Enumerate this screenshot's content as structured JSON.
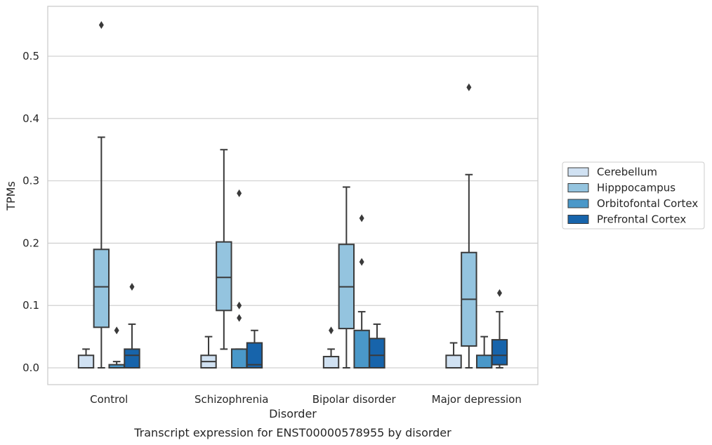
{
  "chart_data": {
    "type": "boxplot",
    "caption": "Transcript expression for ENST00000578955 by disorder",
    "xlabel": "Disorder",
    "ylabel": "TPMs",
    "ylim": [
      -0.027,
      0.58
    ],
    "yticks": [
      0.0,
      0.1,
      0.2,
      0.3,
      0.4,
      0.5
    ],
    "ytick_labels": [
      "0.0",
      "0.1",
      "0.2",
      "0.3",
      "0.4",
      "0.5"
    ],
    "grid": "horizontal",
    "legend_placement": "right",
    "categories": [
      "Control",
      "Schizophrenia",
      "Bipolar disorder",
      "Major depression"
    ],
    "series": [
      {
        "name": "Cerebellum",
        "color": "#d0e1f2",
        "boxes": [
          {
            "whislo": 0.0,
            "q1": 0.0,
            "med": 0.0,
            "q3": 0.02,
            "whishi": 0.03,
            "fliers": []
          },
          {
            "whislo": 0.0,
            "q1": 0.0,
            "med": 0.01,
            "q3": 0.02,
            "whishi": 0.05,
            "fliers": []
          },
          {
            "whislo": 0.0,
            "q1": 0.0,
            "med": 0.0,
            "q3": 0.018,
            "whishi": 0.03,
            "fliers": [
              0.06
            ]
          },
          {
            "whislo": 0.0,
            "q1": 0.0,
            "med": 0.0,
            "q3": 0.02,
            "whishi": 0.04,
            "fliers": []
          }
        ]
      },
      {
        "name": "Hipppocampus",
        "color": "#94c4df",
        "boxes": [
          {
            "whislo": 0.0,
            "q1": 0.065,
            "med": 0.13,
            "q3": 0.19,
            "whishi": 0.37,
            "fliers": [
              0.55
            ]
          },
          {
            "whislo": 0.03,
            "q1": 0.092,
            "med": 0.145,
            "q3": 0.202,
            "whishi": 0.35,
            "fliers": []
          },
          {
            "whislo": 0.0,
            "q1": 0.063,
            "med": 0.13,
            "q3": 0.198,
            "whishi": 0.29,
            "fliers": []
          },
          {
            "whislo": 0.0,
            "q1": 0.035,
            "med": 0.11,
            "q3": 0.185,
            "whishi": 0.31,
            "fliers": [
              0.45
            ]
          }
        ]
      },
      {
        "name": "Orbitofontal Cortex",
        "color": "#4a98c9",
        "boxes": [
          {
            "whislo": 0.0,
            "q1": 0.0,
            "med": 0.0,
            "q3": 0.005,
            "whishi": 0.01,
            "fliers": [
              0.06
            ]
          },
          {
            "whislo": 0.0,
            "q1": 0.0,
            "med": 0.0,
            "q3": 0.03,
            "whishi": 0.03,
            "fliers": [
              0.08,
              0.1,
              0.28
            ]
          },
          {
            "whislo": 0.0,
            "q1": 0.0,
            "med": 0.0,
            "q3": 0.06,
            "whishi": 0.09,
            "fliers": [
              0.17,
              0.24
            ]
          },
          {
            "whislo": 0.0,
            "q1": 0.0,
            "med": 0.0,
            "q3": 0.02,
            "whishi": 0.05,
            "fliers": []
          }
        ]
      },
      {
        "name": "Prefrontal Cortex",
        "color": "#1764ab",
        "boxes": [
          {
            "whislo": 0.0,
            "q1": 0.0,
            "med": 0.02,
            "q3": 0.03,
            "whishi": 0.07,
            "fliers": [
              0.13
            ]
          },
          {
            "whislo": 0.0,
            "q1": 0.0,
            "med": 0.005,
            "q3": 0.04,
            "whishi": 0.06,
            "fliers": []
          },
          {
            "whislo": 0.0,
            "q1": 0.0,
            "med": 0.02,
            "q3": 0.047,
            "whishi": 0.07,
            "fliers": []
          },
          {
            "whislo": 0.0,
            "q1": 0.005,
            "med": 0.02,
            "q3": 0.045,
            "whishi": 0.09,
            "fliers": [
              0.12
            ]
          }
        ]
      }
    ]
  }
}
